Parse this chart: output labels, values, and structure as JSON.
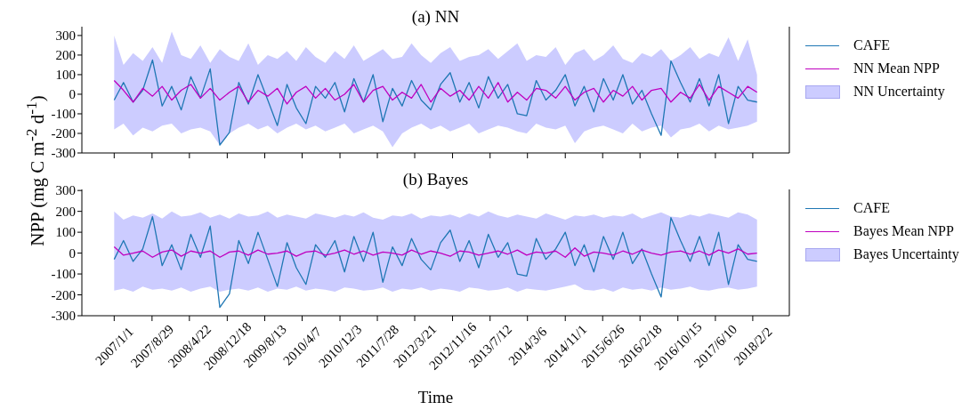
{
  "chart_data": [
    {
      "type": "line",
      "title": "(a) NN",
      "ylabel": "NPP (mg C m$^{-2}$ d$^{-1}$)",
      "legend": "right",
      "tick_labels": "y",
      "annotations": [
        "NN Uncertainty"
      ],
      "x": [
        "2007-01",
        "2007-03",
        "2007-05",
        "2007-07",
        "2007-09",
        "2007-11",
        "2008-01",
        "2008-03",
        "2008-05",
        "2008-07",
        "2008-09",
        "2008-11",
        "2009-01",
        "2009-03",
        "2009-05",
        "2009-07",
        "2009-09",
        "2009-11",
        "2010-01",
        "2010-03",
        "2010-05",
        "2010-07",
        "2010-09",
        "2010-11",
        "2011-01",
        "2011-03",
        "2011-05",
        "2011-07",
        "2011-09",
        "2011-11",
        "2012-01",
        "2012-03",
        "2012-05",
        "2012-07",
        "2012-09",
        "2012-11",
        "2013-01",
        "2013-03",
        "2013-05",
        "2013-07",
        "2013-09",
        "2013-11",
        "2014-01",
        "2014-03",
        "2014-05",
        "2014-07",
        "2014-09",
        "2014-11",
        "2015-01",
        "2015-03",
        "2015-05",
        "2015-07",
        "2015-09",
        "2015-11",
        "2016-01",
        "2016-03",
        "2016-05",
        "2016-07",
        "2016-09",
        "2016-11",
        "2017-01",
        "2017-03",
        "2017-05",
        "2017-07",
        "2017-09",
        "2017-11",
        "2018-01",
        "2018-03"
      ],
      "xlim": [
        "2006-06-10",
        "2018-09-22"
      ],
      "xticks": [
        {
          "value": "2007-01-01",
          "label": null
        },
        {
          "value": "2007-08-29",
          "label": null
        },
        {
          "value": "2008-04-22",
          "label": null
        },
        {
          "value": "2008-12-18",
          "label": null
        },
        {
          "value": "2009-08-13",
          "label": null
        },
        {
          "value": "2010-04-07",
          "label": null
        },
        {
          "value": "2010-12-03",
          "label": null
        },
        {
          "value": "2011-07-28",
          "label": null
        },
        {
          "value": "2012-03-21",
          "label": null
        },
        {
          "value": "2012-11-16",
          "label": null
        },
        {
          "value": "2013-07-12",
          "label": null
        },
        {
          "value": "2014-03-06",
          "label": null
        },
        {
          "value": "2014-11-01",
          "label": null
        },
        {
          "value": "2015-06-26",
          "label": null
        },
        {
          "value": "2016-02-18",
          "label": null
        },
        {
          "value": "2016-10-15",
          "label": null
        },
        {
          "value": "2017-06-10",
          "label": null
        },
        {
          "value": "2018-02-02",
          "label": null
        }
      ],
      "ylim": [
        -300,
        345
      ],
      "yticks": [
        -300,
        -200,
        -100,
        0,
        100,
        200,
        300
      ],
      "series": [
        {
          "name": "CAFE",
          "color": "#1f77b4",
          "values": [
            -30,
            60,
            -40,
            20,
            175,
            -60,
            40,
            -80,
            90,
            -20,
            130,
            -260,
            -195,
            60,
            -50,
            100,
            -30,
            -160,
            50,
            -70,
            -150,
            40,
            -20,
            60,
            -90,
            80,
            -40,
            100,
            -140,
            30,
            -60,
            70,
            -30,
            -80,
            50,
            110,
            -40,
            60,
            -70,
            90,
            -20,
            50,
            -100,
            -110,
            70,
            -30,
            20,
            100,
            -60,
            40,
            -90,
            80,
            -30,
            100,
            -50,
            20,
            -100,
            -210,
            170,
            60,
            -40,
            80,
            -60,
            100,
            -150,
            40,
            -30,
            -40
          ]
        },
        {
          "name": "NN Mean NPP",
          "color": "#bf00bf",
          "values": [
            70,
            20,
            -40,
            30,
            -10,
            40,
            -30,
            20,
            50,
            -20,
            30,
            -30,
            10,
            40,
            -40,
            20,
            -10,
            30,
            -50,
            10,
            40,
            -20,
            30,
            -30,
            0,
            50,
            -40,
            20,
            40,
            -30,
            10,
            -20,
            50,
            -40,
            30,
            -10,
            20,
            -30,
            40,
            -20,
            60,
            -40,
            10,
            -30,
            30,
            20,
            -20,
            40,
            -30,
            10,
            30,
            -40,
            20,
            -10,
            40,
            -30,
            20,
            30,
            -40,
            10,
            -20,
            50,
            -30,
            40,
            10,
            -20,
            40,
            10
          ],
          "upper": [
            300,
            150,
            210,
            170,
            240,
            160,
            320,
            200,
            180,
            250,
            160,
            230,
            190,
            170,
            260,
            150,
            200,
            180,
            220,
            170,
            240,
            190,
            160,
            220,
            180,
            250,
            170,
            200,
            230,
            180,
            190,
            260,
            200,
            160,
            210,
            240,
            170,
            190,
            200,
            230,
            180,
            220,
            260,
            170,
            200,
            190,
            240,
            150,
            210,
            230,
            170,
            200,
            250,
            180,
            160,
            210,
            190,
            230,
            170,
            200,
            240,
            180,
            210,
            190,
            290,
            170,
            280,
            100
          ],
          "lower": [
            -180,
            -150,
            -210,
            -170,
            -190,
            -160,
            -150,
            -200,
            -180,
            -170,
            -190,
            -260,
            -200,
            -170,
            -150,
            -180,
            -160,
            -200,
            -170,
            -150,
            -180,
            -160,
            -190,
            -170,
            -150,
            -200,
            -180,
            -160,
            -190,
            -270,
            -200,
            -170,
            -150,
            -180,
            -160,
            -190,
            -170,
            -150,
            -200,
            -180,
            -160,
            -170,
            -190,
            -200,
            -150,
            -170,
            -180,
            -160,
            -250,
            -190,
            -170,
            -160,
            -180,
            -200,
            -150,
            -190,
            -170,
            -160,
            -220,
            -180,
            -170,
            -150,
            -190,
            -160,
            -180,
            -170,
            -160,
            -140
          ]
        }
      ]
    },
    {
      "type": "line",
      "title": "(b) Bayes",
      "xlabel": "Time",
      "legend": "right",
      "annotations": [
        "Bayes Uncertainty"
      ],
      "x": [
        "2007-01",
        "2007-03",
        "2007-05",
        "2007-07",
        "2007-09",
        "2007-11",
        "2008-01",
        "2008-03",
        "2008-05",
        "2008-07",
        "2008-09",
        "2008-11",
        "2009-01",
        "2009-03",
        "2009-05",
        "2009-07",
        "2009-09",
        "2009-11",
        "2010-01",
        "2010-03",
        "2010-05",
        "2010-07",
        "2010-09",
        "2010-11",
        "2011-01",
        "2011-03",
        "2011-05",
        "2011-07",
        "2011-09",
        "2011-11",
        "2012-01",
        "2012-03",
        "2012-05",
        "2012-07",
        "2012-09",
        "2012-11",
        "2013-01",
        "2013-03",
        "2013-05",
        "2013-07",
        "2013-09",
        "2013-11",
        "2014-01",
        "2014-03",
        "2014-05",
        "2014-07",
        "2014-09",
        "2014-11",
        "2015-01",
        "2015-03",
        "2015-05",
        "2015-07",
        "2015-09",
        "2015-11",
        "2016-01",
        "2016-03",
        "2016-05",
        "2016-07",
        "2016-09",
        "2016-11",
        "2017-01",
        "2017-03",
        "2017-05",
        "2017-07",
        "2017-09",
        "2017-11",
        "2018-01",
        "2018-03"
      ],
      "xlim": [
        "2006-06-10",
        "2018-09-22"
      ],
      "xticks": [
        {
          "value": "2007-01-01",
          "label": "2007/1/1"
        },
        {
          "value": "2007-08-29",
          "label": "2007/8/29"
        },
        {
          "value": "2008-04-22",
          "label": "2008/4/22"
        },
        {
          "value": "2008-12-18",
          "label": "2008/12/18"
        },
        {
          "value": "2009-08-13",
          "label": "2009/8/13"
        },
        {
          "value": "2010-04-07",
          "label": "2010/4/7"
        },
        {
          "value": "2010-12-03",
          "label": "2010/12/3"
        },
        {
          "value": "2011-07-28",
          "label": "2011/7/28"
        },
        {
          "value": "2012-03-21",
          "label": "2012/3/21"
        },
        {
          "value": "2012-11-16",
          "label": "2012/11/16"
        },
        {
          "value": "2013-07-12",
          "label": "2013/7/12"
        },
        {
          "value": "2014-03-06",
          "label": "2014/3/6"
        },
        {
          "value": "2014-11-01",
          "label": "2014/11/1"
        },
        {
          "value": "2015-06-26",
          "label": "2015/6/26"
        },
        {
          "value": "2016-02-18",
          "label": "2016/2/18"
        },
        {
          "value": "2016-10-15",
          "label": "2016/10/15"
        },
        {
          "value": "2017-06-10",
          "label": "2017/6/10"
        },
        {
          "value": "2018-02-02",
          "label": "2018/2/2"
        }
      ],
      "ylim": [
        -300,
        305
      ],
      "yticks": [
        -300,
        -200,
        -100,
        0,
        100,
        200,
        300
      ],
      "series": [
        {
          "name": "CAFE",
          "color": "#1f77b4",
          "values": [
            -30,
            60,
            -40,
            20,
            175,
            -60,
            40,
            -80,
            90,
            -20,
            130,
            -260,
            -195,
            60,
            -50,
            100,
            -30,
            -160,
            50,
            -70,
            -150,
            40,
            -20,
            60,
            -90,
            80,
            -40,
            100,
            -140,
            30,
            -60,
            70,
            -30,
            -80,
            50,
            110,
            -40,
            60,
            -70,
            90,
            -20,
            50,
            -100,
            -110,
            70,
            -30,
            20,
            100,
            -60,
            40,
            -90,
            80,
            -30,
            100,
            -50,
            20,
            -100,
            -210,
            170,
            60,
            -40,
            80,
            -60,
            100,
            -150,
            40,
            -30,
            -40
          ]
        },
        {
          "name": "Bayes Mean NPP",
          "color": "#bf00bf",
          "values": [
            30,
            -10,
            0,
            10,
            -20,
            5,
            15,
            -15,
            10,
            0,
            10,
            -20,
            5,
            10,
            -10,
            15,
            -5,
            0,
            10,
            -15,
            5,
            10,
            -10,
            0,
            15,
            -5,
            10,
            -10,
            5,
            0,
            -10,
            15,
            -5,
            10,
            0,
            -15,
            10,
            5,
            -10,
            0,
            10,
            -5,
            15,
            -10,
            5,
            0,
            10,
            -20,
            25,
            -15,
            5,
            0,
            -10,
            10,
            -5,
            15,
            0,
            -10,
            5,
            10,
            -5,
            10,
            -10,
            15,
            0,
            20,
            -5,
            0
          ],
          "upper": [
            200,
            160,
            180,
            170,
            190,
            165,
            200,
            175,
            180,
            195,
            170,
            185,
            165,
            190,
            175,
            180,
            200,
            170,
            185,
            175,
            165,
            190,
            180,
            170,
            185,
            175,
            195,
            170,
            160,
            180,
            175,
            190,
            165,
            180,
            175,
            185,
            170,
            190,
            175,
            200,
            180,
            170,
            185,
            175,
            165,
            190,
            175,
            160,
            180,
            175,
            185,
            170,
            180,
            175,
            190,
            165,
            180,
            195,
            175,
            170,
            185,
            175,
            190,
            180,
            170,
            195,
            185,
            160
          ],
          "lower": [
            -180,
            -170,
            -185,
            -160,
            -175,
            -170,
            -180,
            -165,
            -185,
            -170,
            -160,
            -185,
            -175,
            -170,
            -180,
            -165,
            -185,
            -170,
            -175,
            -160,
            -180,
            -170,
            -175,
            -185,
            -165,
            -170,
            -180,
            -175,
            -165,
            -185,
            -170,
            -175,
            -165,
            -180,
            -170,
            -175,
            -185,
            -165,
            -170,
            -180,
            -175,
            -165,
            -185,
            -170,
            -175,
            -180,
            -170,
            -160,
            -150,
            -175,
            -180,
            -170,
            -185,
            -165,
            -175,
            -170,
            -180,
            -165,
            -175,
            -170,
            -160,
            -175,
            -180,
            -170,
            -165,
            -175,
            -170,
            -160
          ]
        }
      ]
    }
  ]
}
